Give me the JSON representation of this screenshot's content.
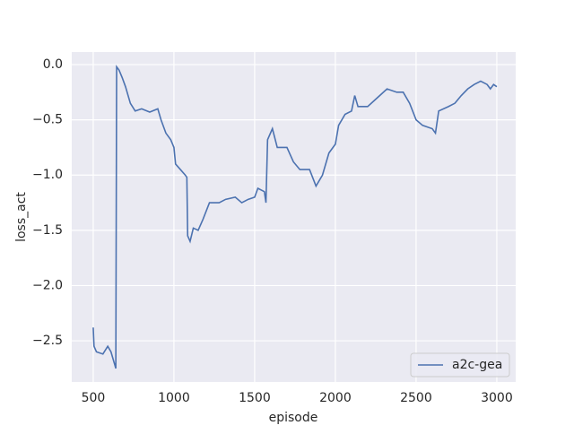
{
  "chart_data": {
    "type": "line",
    "xlabel": "episode",
    "ylabel": "loss_act",
    "x": [
      500,
      505,
      520,
      560,
      590,
      610,
      630,
      640,
      645,
      660,
      680,
      700,
      730,
      760,
      800,
      850,
      900,
      920,
      950,
      980,
      1000,
      1010,
      1040,
      1070,
      1080,
      1085,
      1100,
      1120,
      1150,
      1180,
      1220,
      1280,
      1320,
      1380,
      1420,
      1460,
      1500,
      1520,
      1560,
      1570,
      1580,
      1610,
      1640,
      1700,
      1740,
      1780,
      1840,
      1880,
      1920,
      1960,
      2000,
      2020,
      2060,
      2100,
      2120,
      2140,
      2200,
      2260,
      2320,
      2380,
      2420,
      2460,
      2500,
      2540,
      2600,
      2620,
      2640,
      2700,
      2740,
      2780,
      2820,
      2860,
      2900,
      2940,
      2960,
      2980,
      3000
    ],
    "series": [
      {
        "name": "a2c-gea",
        "color": "#4c72b0",
        "values": [
          -2.38,
          -2.55,
          -2.6,
          -2.62,
          -2.55,
          -2.6,
          -2.7,
          -2.75,
          -0.02,
          -0.05,
          -0.12,
          -0.2,
          -0.35,
          -0.42,
          -0.4,
          -0.43,
          -0.4,
          -0.5,
          -0.62,
          -0.68,
          -0.75,
          -0.9,
          -0.95,
          -1.0,
          -1.02,
          -1.55,
          -1.6,
          -1.48,
          -1.5,
          -1.4,
          -1.25,
          -1.25,
          -1.22,
          -1.2,
          -1.25,
          -1.22,
          -1.2,
          -1.12,
          -1.15,
          -1.25,
          -0.68,
          -0.58,
          -0.75,
          -0.75,
          -0.88,
          -0.95,
          -0.95,
          -1.1,
          -1.0,
          -0.8,
          -0.72,
          -0.55,
          -0.45,
          -0.42,
          -0.28,
          -0.38,
          -0.38,
          -0.3,
          -0.22,
          -0.25,
          -0.25,
          -0.35,
          -0.5,
          -0.55,
          -0.58,
          -0.62,
          -0.42,
          -0.38,
          -0.35,
          -0.28,
          -0.22,
          -0.18,
          -0.15,
          -0.18,
          -0.22,
          -0.18,
          -0.2
        ]
      }
    ],
    "xlim": [
      367,
      3117
    ],
    "ylim": [
      -2.873,
      0.114
    ],
    "xticks": [
      500,
      1000,
      1500,
      2000,
      2500,
      3000
    ],
    "yticks": [
      {
        "value": 0,
        "label": "0.0"
      },
      {
        "value": -0.5,
        "label": "−0.5"
      },
      {
        "value": -1,
        "label": "−1.0"
      },
      {
        "value": -1.5,
        "label": "−1.5"
      },
      {
        "value": -2,
        "label": "−2.0"
      },
      {
        "value": -2.5,
        "label": "−2.5"
      }
    ],
    "grid": true,
    "legend": "lower right"
  }
}
